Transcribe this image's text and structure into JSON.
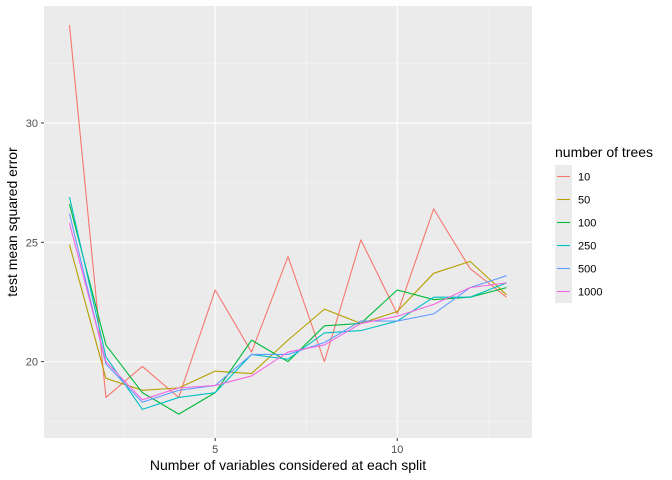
{
  "chart_data": {
    "type": "line",
    "title": "",
    "xlabel": "Number of variables considered at each split",
    "ylabel": "test mean squared error",
    "xlim": [
      0.3,
      13.7
    ],
    "ylim": [
      16.8,
      34.9
    ],
    "x_ticks": [
      5,
      10
    ],
    "y_ticks": [
      20,
      25,
      30
    ],
    "x_tick_labels": [
      "5",
      "10"
    ],
    "y_tick_labels": [
      "20",
      "25",
      "30"
    ],
    "grid": true,
    "legend_title": "number of trees",
    "legend_position": "right",
    "x": [
      1,
      2,
      3,
      4,
      5,
      6,
      7,
      8,
      9,
      10,
      11,
      12,
      13
    ],
    "series": [
      {
        "name": "10",
        "color": "#F8766D",
        "values": [
          34.1,
          18.5,
          19.8,
          18.5,
          23.0,
          20.4,
          24.4,
          20.0,
          25.1,
          22.0,
          26.4,
          23.9,
          22.7
        ]
      },
      {
        "name": "50",
        "color": "#B79F00",
        "values": [
          24.9,
          19.3,
          18.8,
          18.9,
          19.6,
          19.5,
          20.9,
          22.2,
          21.6,
          22.1,
          23.7,
          24.2,
          22.8
        ]
      },
      {
        "name": "100",
        "color": "#00BA38",
        "values": [
          26.6,
          20.7,
          18.7,
          17.8,
          18.7,
          20.9,
          20.0,
          21.5,
          21.6,
          23.0,
          22.6,
          22.7,
          23.1
        ]
      },
      {
        "name": "250",
        "color": "#00BFC4",
        "values": [
          26.9,
          20.2,
          18.0,
          18.5,
          18.7,
          20.3,
          20.1,
          21.2,
          21.3,
          21.7,
          22.7,
          22.7,
          23.3
        ]
      },
      {
        "name": "500",
        "color": "#619CFF",
        "values": [
          26.2,
          19.9,
          18.3,
          18.8,
          19.0,
          20.3,
          20.3,
          20.8,
          21.7,
          21.7,
          22.0,
          23.1,
          23.6
        ]
      },
      {
        "name": "1000",
        "color": "#F564E3",
        "values": [
          25.8,
          20.0,
          18.4,
          18.9,
          19.0,
          19.4,
          20.4,
          20.7,
          21.6,
          21.9,
          22.4,
          23.1,
          23.3
        ]
      }
    ]
  },
  "colors": {
    "panel_background": "#EBEBEB",
    "grid_major": "#FFFFFF",
    "grid_minor": "#F5F5F5",
    "tick_text": "#4D4D4D"
  }
}
